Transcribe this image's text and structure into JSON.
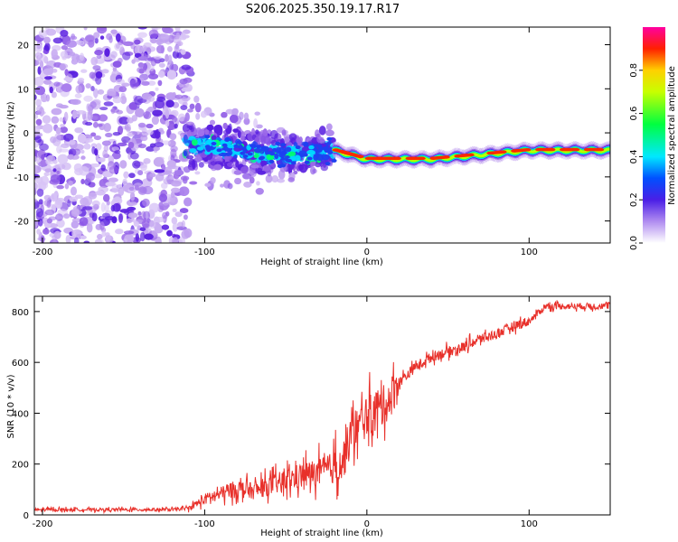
{
  "title": "S206.2025.350.19.17.R17",
  "chart_data": [
    {
      "type": "heatmap",
      "xlabel": "Height of straight line (km)",
      "ylabel": "Frequency (Hz)",
      "xlim": [
        -205,
        150
      ],
      "ylim": [
        -25,
        24
      ],
      "xticks": [
        -200,
        -100,
        0,
        100
      ],
      "yticks": [
        20,
        10,
        0,
        -10,
        -20
      ],
      "colorbar": {
        "label": "Normalized spectral amplitude",
        "range": [
          0,
          1
        ],
        "ticks": [
          0.0,
          0.2,
          0.4,
          0.6,
          0.8
        ]
      },
      "signal_center_hz": [
        {
          "x": -100,
          "y": -3
        },
        {
          "x": -50,
          "y": -5
        },
        {
          "x": -20,
          "y": -4
        },
        {
          "x": 0,
          "y": -6
        },
        {
          "x": 40,
          "y": -6
        },
        {
          "x": 100,
          "y": -4
        },
        {
          "x": 150,
          "y": -4
        }
      ]
    },
    {
      "type": "line",
      "xlabel": "Height of straight line (km)",
      "ylabel": "SNR (10 * v/v)",
      "xlim": [
        -205,
        150
      ],
      "ylim": [
        0,
        860
      ],
      "xticks": [
        -200,
        -100,
        0,
        100
      ],
      "yticks": [
        0,
        200,
        400,
        600,
        800
      ],
      "series": [
        {
          "name": "SNR",
          "color": "#e8302a",
          "x": [
            -205,
            -180,
            -150,
            -120,
            -110,
            -100,
            -90,
            -80,
            -70,
            -60,
            -50,
            -40,
            -30,
            -20,
            -15,
            -10,
            0,
            5,
            10,
            15,
            20,
            30,
            40,
            50,
            60,
            70,
            80,
            90,
            100,
            105,
            110,
            120,
            130,
            140,
            150
          ],
          "y": [
            20,
            20,
            20,
            20,
            25,
            60,
            80,
            100,
            90,
            110,
            130,
            150,
            160,
            180,
            200,
            300,
            380,
            400,
            420,
            460,
            520,
            580,
            620,
            640,
            660,
            690,
            710,
            740,
            760,
            790,
            820,
            820,
            820,
            820,
            820
          ]
        }
      ]
    }
  ]
}
